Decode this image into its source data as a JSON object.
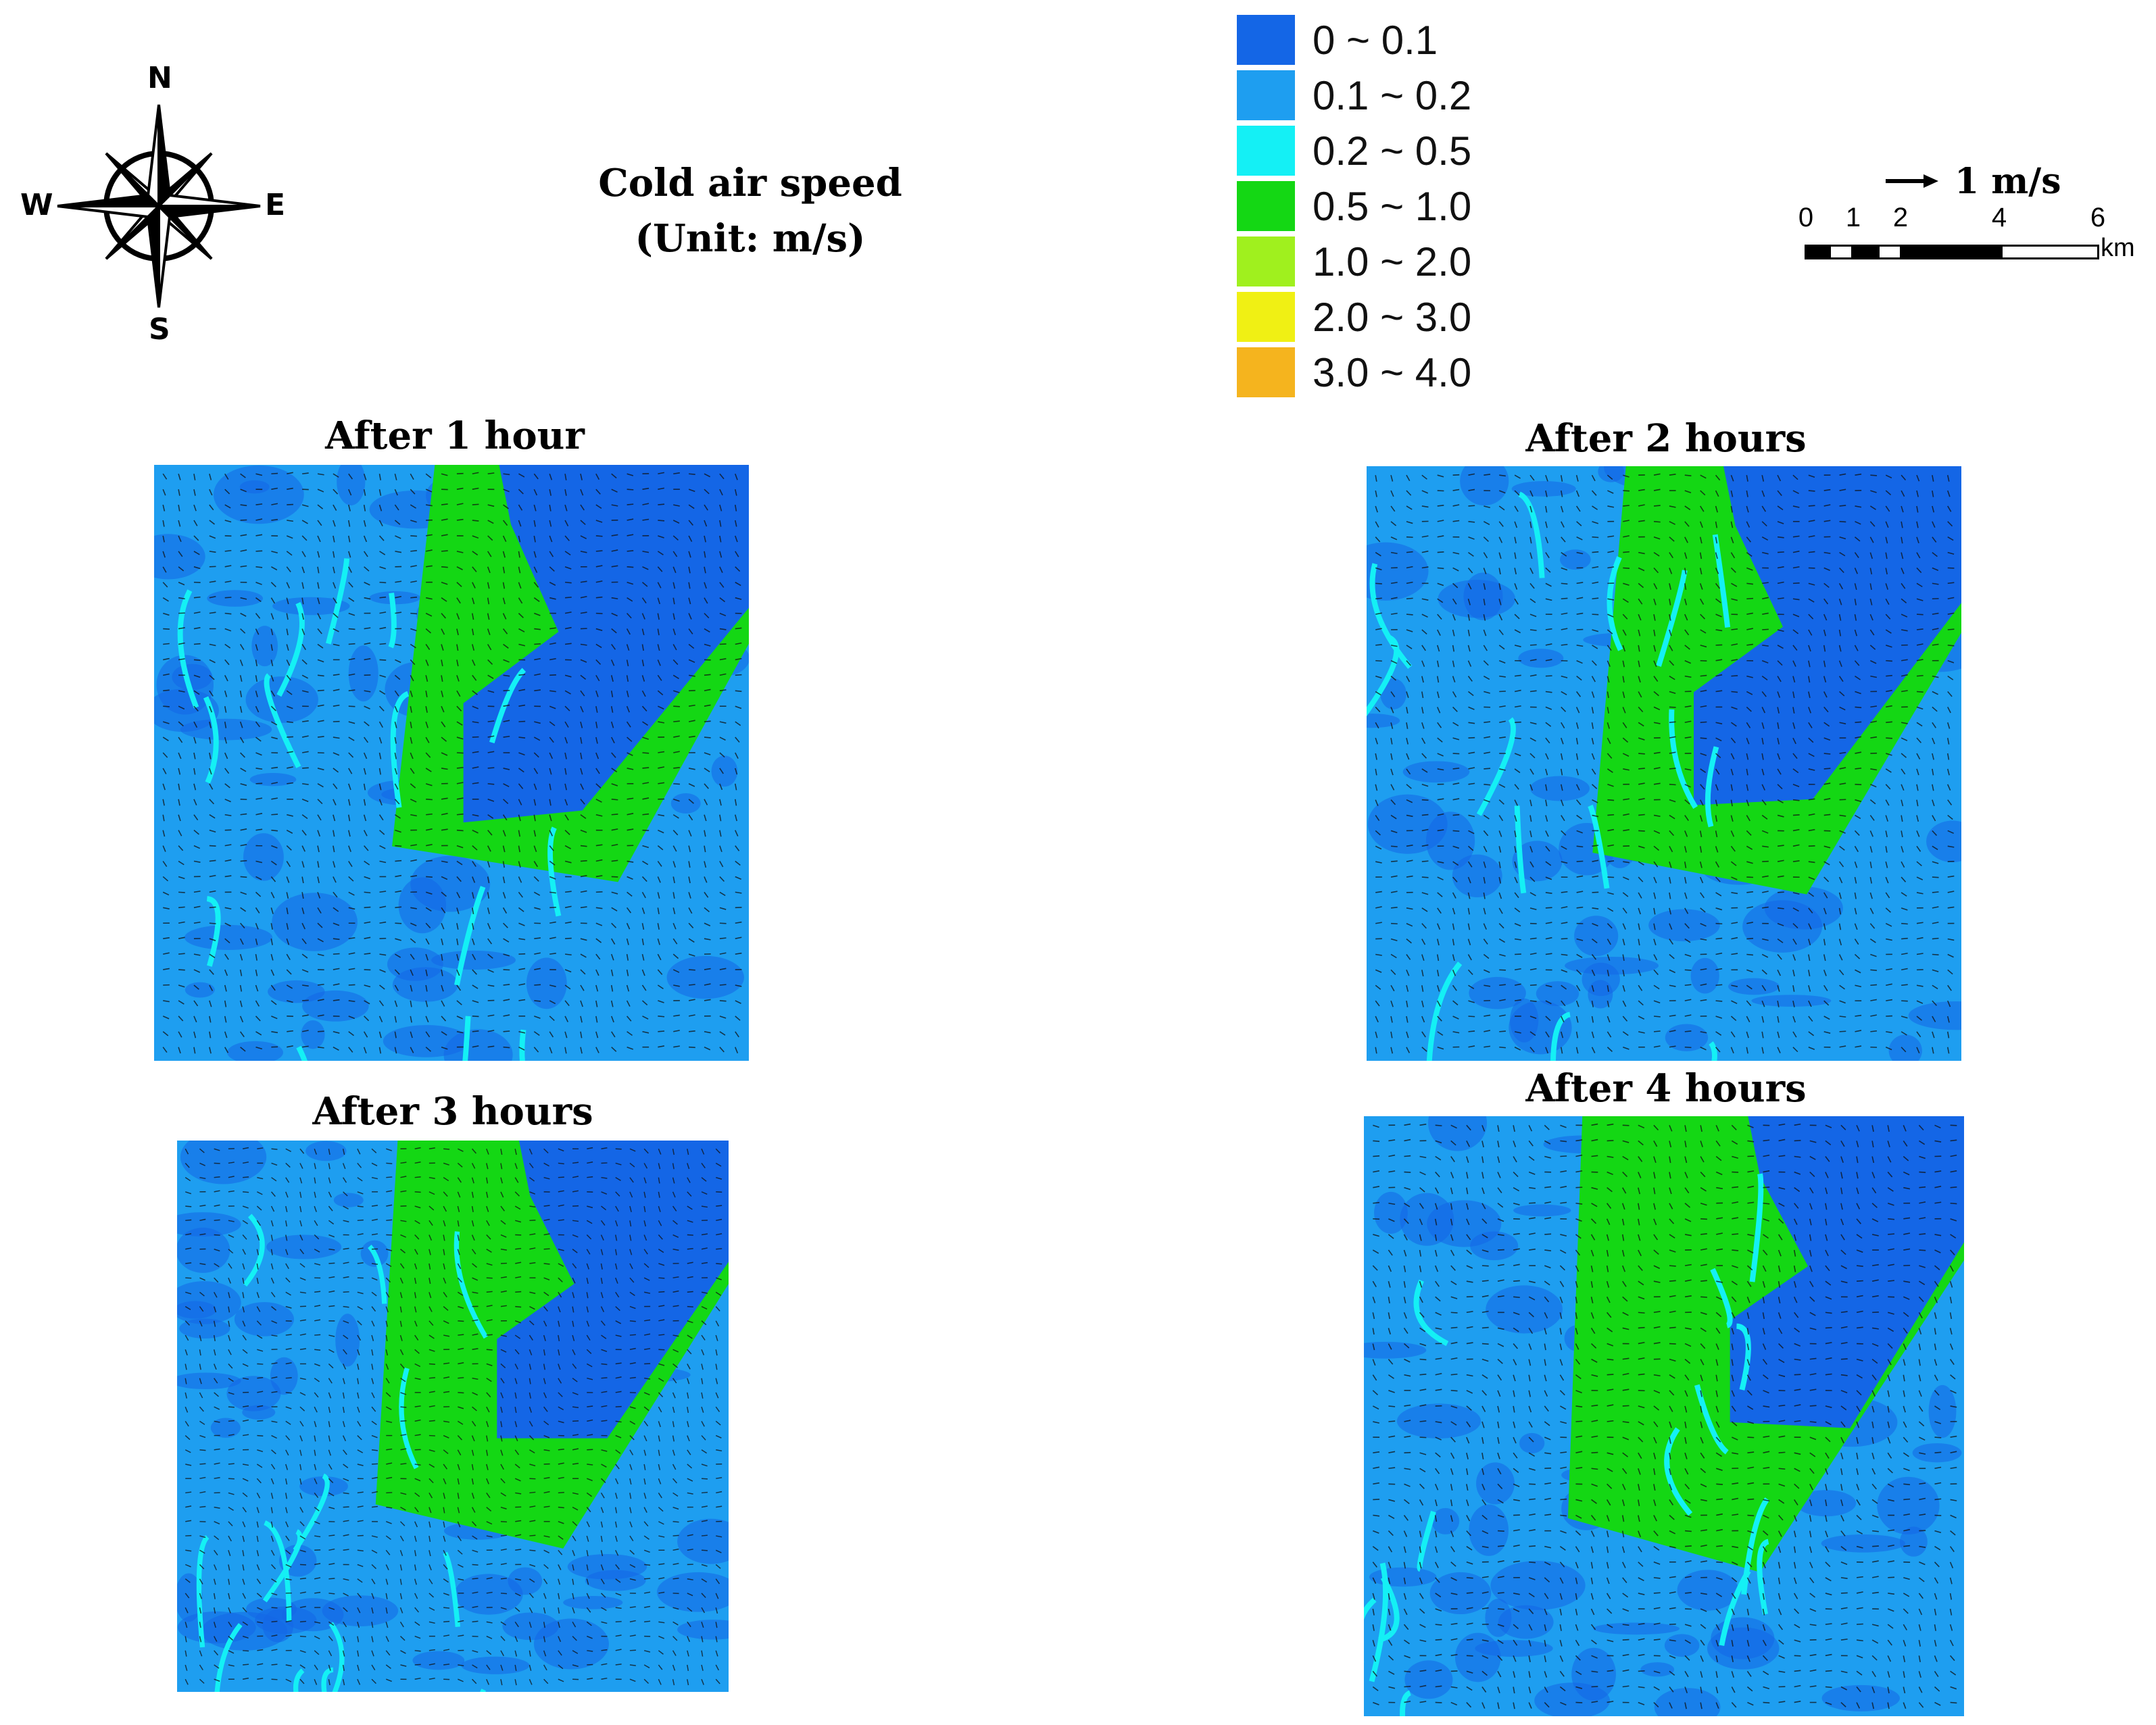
{
  "compass": {
    "n": "N",
    "s": "S",
    "e": "E",
    "w": "W"
  },
  "title": {
    "line1": "Cold air speed",
    "line2": "(Unit: m/s)"
  },
  "legend": [
    {
      "label": "0 ~ 0.1",
      "color": "#1466e6"
    },
    {
      "label": "0.1 ~ 0.2",
      "color": "#1e9ef0"
    },
    {
      "label": "0.2 ~ 0.5",
      "color": "#14f0f5"
    },
    {
      "label": "0.5 ~ 1.0",
      "color": "#14d714"
    },
    {
      "label": "1.0 ~ 2.0",
      "color": "#a0f01e"
    },
    {
      "label": "2.0 ~ 3.0",
      "color": "#f0f014"
    },
    {
      "label": "3.0 ~ 4.0",
      "color": "#f5b41e"
    }
  ],
  "arrow_key": {
    "label": "1 m/s"
  },
  "scale": {
    "ticks": [
      "0",
      "1",
      "2",
      "4",
      "6"
    ],
    "unit": "km"
  },
  "panels": [
    {
      "title": "After 1 hour"
    },
    {
      "title": "After 2 hours"
    },
    {
      "title": "After 3 hours"
    },
    {
      "title": "After 4 hours"
    }
  ]
}
